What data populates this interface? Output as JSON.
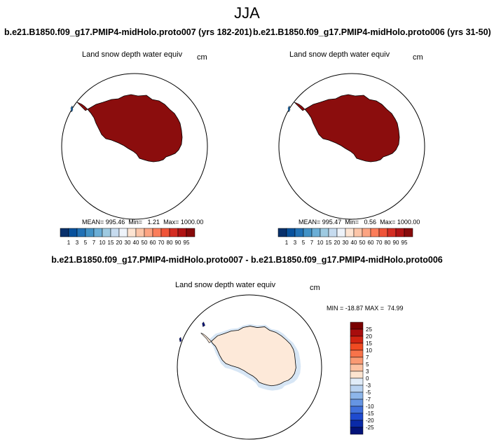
{
  "season": "JJA",
  "panels": [
    {
      "title": "b.e21.B1850.f09_g17.PMIP4-midHolo.proto007 (yrs 182-201)",
      "variable": "Land snow depth water equiv",
      "units": "cm",
      "stats": "MEAN= 995.46  Min=   1.21  Max= 1000.00",
      "colorbar_labels": [
        "1",
        "3",
        "5",
        "7",
        "10",
        "15",
        "20",
        "30",
        "40",
        "50",
        "60",
        "70",
        "80",
        "90",
        "95"
      ]
    },
    {
      "title": "b.e21.B1850.f09_g17.PMIP4-midHolo.proto006 (yrs 31-50)",
      "variable": "Land snow depth water equiv",
      "units": "cm",
      "stats": "MEAN= 995.47  Min=   0.56  Max= 1000.00",
      "colorbar_labels": [
        "1",
        "3",
        "5",
        "7",
        "10",
        "15",
        "20",
        "30",
        "40",
        "50",
        "60",
        "70",
        "80",
        "90",
        "95"
      ]
    }
  ],
  "diff": {
    "title": "b.e21.B1850.f09_g17.PMIP4-midHolo.proto007 - b.e21.B1850.f09_g17.PMIP4-midHolo.proto006",
    "variable": "Land snow depth water equiv",
    "units": "cm",
    "stats": "MIN = -18.87 MAX =  74.99",
    "colorbar_labels": [
      "25",
      "20",
      "15",
      "10",
      "7",
      "5",
      "3",
      "0",
      "-3",
      "-5",
      "-7",
      "-10",
      "-15",
      "-20",
      "-25"
    ]
  },
  "colors": {
    "abs_scale": [
      "#08306b",
      "#08519c",
      "#2171b5",
      "#4292c6",
      "#6baed6",
      "#9ecae1",
      "#c6dbef",
      "#eef3fa",
      "#fde4d2",
      "#fcc5a8",
      "#fca482",
      "#fb7d5a",
      "#ef5438",
      "#d42d22",
      "#b01414",
      "#870b0b"
    ],
    "diff_scale": [
      "#7a0000",
      "#a80d0d",
      "#d12412",
      "#f04b22",
      "#f7734a",
      "#f99a73",
      "#fcc2a2",
      "#fde4cf",
      "#e1ecf8",
      "#b9d2f0",
      "#8db6ea",
      "#6695e3",
      "#4070dc",
      "#1f4bd0",
      "#0a2aa8",
      "#03137a"
    ],
    "antarctica_abs": "#8b0d0d",
    "antarctica_diff": "#fde9d9",
    "diff_edge": "#d7e6f5"
  },
  "chart_data": [
    {
      "type": "heatmap",
      "title": "b.e21.B1850.f09_g17.PMIP4-midHolo.proto007 (yrs 182-201)",
      "variable": "Land snow depth water equiv",
      "units": "cm",
      "projection": "south polar stereographic",
      "region": "Antarctica",
      "mean": 995.46,
      "min": 1.21,
      "max": 1000.0,
      "levels": [
        1,
        3,
        5,
        7,
        10,
        15,
        20,
        30,
        40,
        50,
        60,
        70,
        80,
        90,
        95
      ]
    },
    {
      "type": "heatmap",
      "title": "b.e21.B1850.f09_g17.PMIP4-midHolo.proto006 (yrs 31-50)",
      "variable": "Land snow depth water equiv",
      "units": "cm",
      "projection": "south polar stereographic",
      "region": "Antarctica",
      "mean": 995.47,
      "min": 0.56,
      "max": 1000.0,
      "levels": [
        1,
        3,
        5,
        7,
        10,
        15,
        20,
        30,
        40,
        50,
        60,
        70,
        80,
        90,
        95
      ]
    },
    {
      "type": "heatmap",
      "title": "b.e21.B1850.f09_g17.PMIP4-midHolo.proto007 - b.e21.B1850.f09_g17.PMIP4-midHolo.proto006",
      "variable": "Land snow depth water equiv",
      "units": "cm",
      "projection": "south polar stereographic",
      "region": "Antarctica",
      "min": -18.87,
      "max": 74.99,
      "levels": [
        -25,
        -20,
        -15,
        -10,
        -7,
        -5,
        -3,
        0,
        3,
        5,
        7,
        10,
        15,
        20,
        25
      ]
    }
  ]
}
